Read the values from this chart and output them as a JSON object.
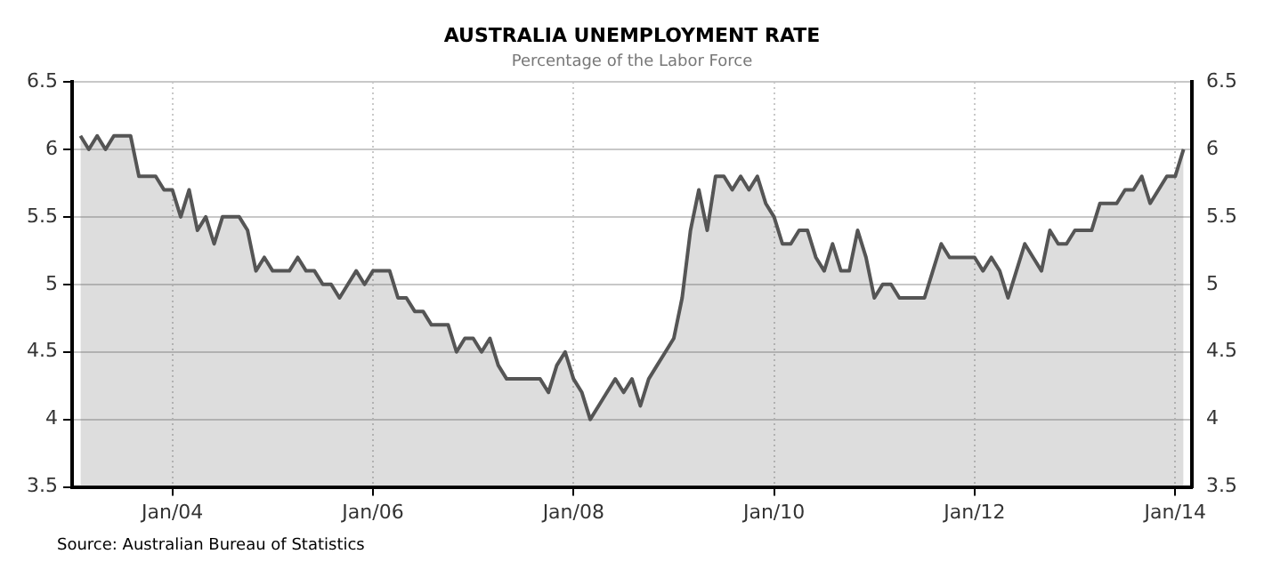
{
  "chart_data": {
    "type": "area",
    "title": "AUSTRALIA UNEMPLOYMENT RATE",
    "subtitle": "Percentage of the Labor Force",
    "annotations": [
      "Source: Australian Bureau of Statistics"
    ],
    "x": [
      "2003-02",
      "2003-03",
      "2003-04",
      "2003-05",
      "2003-06",
      "2003-07",
      "2003-08",
      "2003-09",
      "2003-10",
      "2003-11",
      "2003-12",
      "2004-01",
      "2004-02",
      "2004-03",
      "2004-04",
      "2004-05",
      "2004-06",
      "2004-07",
      "2004-08",
      "2004-09",
      "2004-10",
      "2004-11",
      "2004-12",
      "2005-01",
      "2005-02",
      "2005-03",
      "2005-04",
      "2005-05",
      "2005-06",
      "2005-07",
      "2005-08",
      "2005-09",
      "2005-10",
      "2005-11",
      "2005-12",
      "2006-01",
      "2006-02",
      "2006-03",
      "2006-04",
      "2006-05",
      "2006-06",
      "2006-07",
      "2006-08",
      "2006-09",
      "2006-10",
      "2006-11",
      "2006-12",
      "2007-01",
      "2007-02",
      "2007-03",
      "2007-04",
      "2007-05",
      "2007-06",
      "2007-07",
      "2007-08",
      "2007-09",
      "2007-10",
      "2007-11",
      "2007-12",
      "2008-01",
      "2008-02",
      "2008-03",
      "2008-04",
      "2008-05",
      "2008-06",
      "2008-07",
      "2008-08",
      "2008-09",
      "2008-10",
      "2008-11",
      "2008-12",
      "2009-01",
      "2009-02",
      "2009-03",
      "2009-04",
      "2009-05",
      "2009-06",
      "2009-07",
      "2009-08",
      "2009-09",
      "2009-10",
      "2009-11",
      "2009-12",
      "2010-01",
      "2010-02",
      "2010-03",
      "2010-04",
      "2010-05",
      "2010-06",
      "2010-07",
      "2010-08",
      "2010-09",
      "2010-10",
      "2010-11",
      "2010-12",
      "2011-01",
      "2011-02",
      "2011-03",
      "2011-04",
      "2011-05",
      "2011-06",
      "2011-07",
      "2011-08",
      "2011-09",
      "2011-10",
      "2011-11",
      "2011-12",
      "2012-01",
      "2012-02",
      "2012-03",
      "2012-04",
      "2012-05",
      "2012-06",
      "2012-07",
      "2012-08",
      "2012-09",
      "2012-10",
      "2012-11",
      "2012-12",
      "2013-01",
      "2013-02",
      "2013-03",
      "2013-04",
      "2013-05",
      "2013-06",
      "2013-07",
      "2013-08",
      "2013-09",
      "2013-10",
      "2013-11",
      "2013-12",
      "2014-01",
      "2014-02"
    ],
    "series": [
      {
        "color": "#555555",
        "values": [
          6.1,
          6.0,
          6.1,
          6.0,
          6.1,
          6.1,
          6.1,
          5.8,
          5.8,
          5.8,
          5.7,
          5.7,
          5.5,
          5.7,
          5.4,
          5.5,
          5.3,
          5.5,
          5.5,
          5.5,
          5.4,
          5.1,
          5.2,
          5.1,
          5.1,
          5.1,
          5.2,
          5.1,
          5.1,
          5.0,
          5.0,
          4.9,
          5.0,
          5.1,
          5.0,
          5.1,
          5.1,
          5.1,
          4.9,
          4.9,
          4.8,
          4.8,
          4.7,
          4.7,
          4.7,
          4.5,
          4.6,
          4.6,
          4.5,
          4.6,
          4.4,
          4.3,
          4.3,
          4.3,
          4.3,
          4.3,
          4.2,
          4.4,
          4.5,
          4.3,
          4.2,
          4.0,
          4.1,
          4.2,
          4.3,
          4.2,
          4.3,
          4.1,
          4.3,
          4.4,
          4.5,
          4.6,
          4.9,
          5.4,
          5.7,
          5.4,
          5.8,
          5.8,
          5.7,
          5.8,
          5.7,
          5.8,
          5.6,
          5.5,
          5.3,
          5.3,
          5.4,
          5.4,
          5.2,
          5.1,
          5.3,
          5.1,
          5.1,
          5.4,
          5.2,
          4.9,
          5.0,
          5.0,
          4.9,
          4.9,
          4.9,
          4.9,
          5.1,
          5.3,
          5.2,
          5.2,
          5.2,
          5.2,
          5.1,
          5.2,
          5.1,
          4.9,
          5.1,
          5.3,
          5.2,
          5.1,
          5.4,
          5.3,
          5.3,
          5.4,
          5.4,
          5.4,
          5.6,
          5.6,
          5.6,
          5.7,
          5.7,
          5.8,
          5.6,
          5.7,
          5.8,
          5.8,
          6.0
        ]
      }
    ],
    "xlim": [
      "2003-01",
      "2014-03"
    ],
    "xticks": [
      {
        "value": "2004-01",
        "label": "Jan/04"
      },
      {
        "value": "2006-01",
        "label": "Jan/06"
      },
      {
        "value": "2008-01",
        "label": "Jan/08"
      },
      {
        "value": "2010-01",
        "label": "Jan/10"
      },
      {
        "value": "2012-01",
        "label": "Jan/12"
      },
      {
        "value": "2014-01",
        "label": "Jan/14"
      }
    ],
    "ylim": [
      3.5,
      6.5
    ],
    "yticks": [
      3.5,
      4,
      4.5,
      5,
      5.5,
      6,
      6.5
    ],
    "y2lim": [
      3.5,
      6.5
    ],
    "y2ticks": [
      3.5,
      4,
      4.5,
      5,
      5.5,
      6,
      6.5
    ],
    "grid": true,
    "legend": false,
    "marker": "none",
    "line_style": "solid"
  }
}
